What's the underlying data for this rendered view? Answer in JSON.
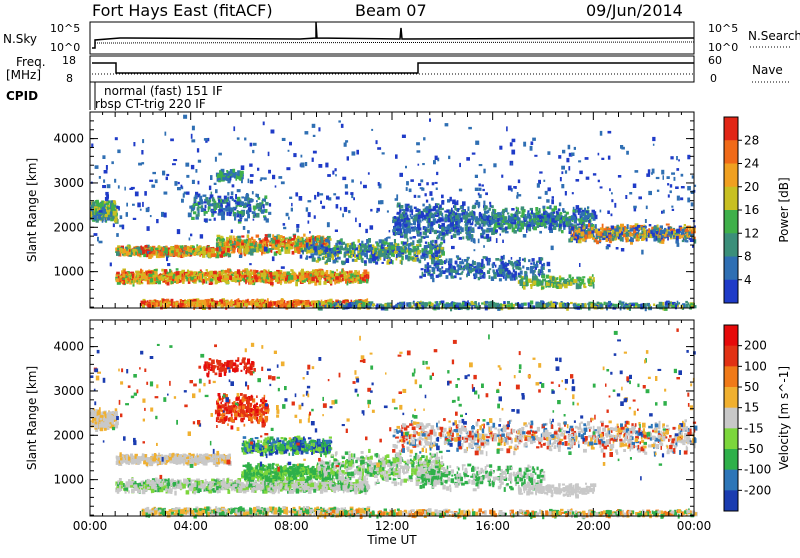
{
  "header": {
    "station": "Fort Hays East (fitACF)",
    "beam": "Beam 07",
    "date": "09/Jun/2014"
  },
  "strip_labels": {
    "nsky": "N.Sky",
    "nsky_ticks": [
      "10^5",
      "10^0"
    ],
    "nsearch": "N.Search",
    "freq": "Freq.",
    "freq_unit": "[MHz]",
    "freq_ticks": [
      "18",
      "8"
    ],
    "nave": "Nave",
    "nave_ticks": [
      "60",
      "0"
    ],
    "cpid": "CPID",
    "cpid_modes": [
      "normal (fast) 151 IF",
      "rbsp CT-trig 220 IF"
    ]
  },
  "chart_data": [
    {
      "type": "heatmap",
      "name": "Power",
      "xlabel": "",
      "ylabel": "Slant Range [km]",
      "y_ticks": [
        1000,
        2000,
        3000,
        4000
      ],
      "colorbar_label": "Power [dB]",
      "colorbar_ticks": [
        4,
        8,
        12,
        16,
        20,
        24,
        28
      ],
      "colors": [
        "#1f3bc8",
        "#2f6fb3",
        "#3b8f7a",
        "#3fb04a",
        "#c8c022",
        "#f0a020",
        "#f06a18",
        "#e22616"
      ]
    },
    {
      "type": "heatmap",
      "name": "Velocity",
      "xlabel": "Time UT",
      "ylabel": "Slant Range [km]",
      "y_ticks": [
        1000,
        2000,
        3000,
        4000
      ],
      "x_ticks": [
        "00:00",
        "04:00",
        "08:00",
        "12:00",
        "16:00",
        "20:00",
        "00:00"
      ],
      "colorbar_label": "Velocity [m s^-1]",
      "colorbar_ticks": [
        200,
        100,
        50,
        15,
        -15,
        -50,
        -100,
        -200
      ],
      "colors": [
        "#1a3cb0",
        "#2d76b8",
        "#2fb04a",
        "#7cd63c",
        "#c8c8c8",
        "#f0b030",
        "#f07a18",
        "#e23214",
        "#e60a0a"
      ]
    }
  ]
}
